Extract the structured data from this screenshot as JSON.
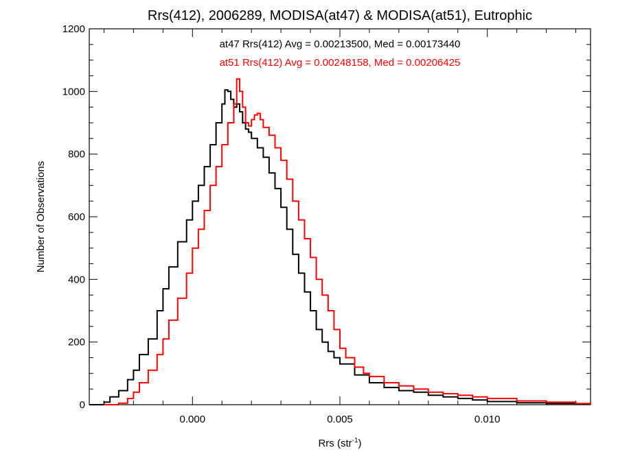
{
  "chart_data": {
    "type": "line",
    "title": "Rrs(412), 2006289, MODISA(at47) & MODISA(at51), Eutrophic",
    "xlabel": "Rrs (str",
    "xlabel_sup": "-1",
    "xlabel_close": ")",
    "ylabel": "Number of Observations",
    "xlim": [
      -0.0035,
      0.0135
    ],
    "ylim": [
      0,
      1200
    ],
    "x_ticks": [
      0.0,
      0.005,
      0.01
    ],
    "x_tick_labels": [
      "0.000",
      "0.005",
      "0.010"
    ],
    "y_ticks": [
      0,
      200,
      400,
      600,
      800,
      1000,
      1200
    ],
    "y_tick_labels": [
      "0",
      "200",
      "400",
      "600",
      "800",
      "1000",
      "1200"
    ],
    "grid": false,
    "annotations": [
      {
        "text": "at47 Rrs(412) Avg = 0.00213500, Med = 0.00173440",
        "color": "#000000"
      },
      {
        "text": "at51 Rrs(412) Avg = 0.00248158, Med = 0.00206425",
        "color": "#ff0000"
      }
    ],
    "series": [
      {
        "color": "#000000",
        "style": "step",
        "points": [
          [
            -0.0035,
            0
          ],
          [
            -0.003,
            8
          ],
          [
            -0.0028,
            25
          ],
          [
            -0.0025,
            45
          ],
          [
            -0.0022,
            80
          ],
          [
            -0.002,
            110
          ],
          [
            -0.0018,
            160
          ],
          [
            -0.0015,
            210
          ],
          [
            -0.0012,
            300
          ],
          [
            -0.001,
            370
          ],
          [
            -0.0008,
            440
          ],
          [
            -0.0005,
            520
          ],
          [
            -0.0002,
            590
          ],
          [
            0.0,
            650
          ],
          [
            0.0002,
            700
          ],
          [
            0.0004,
            760
          ],
          [
            0.0006,
            830
          ],
          [
            0.0008,
            900
          ],
          [
            0.001,
            960
          ],
          [
            0.0011,
            1005
          ],
          [
            0.0012,
            1000
          ],
          [
            0.0013,
            975
          ],
          [
            0.0014,
            950
          ],
          [
            0.0015,
            960
          ],
          [
            0.0016,
            935
          ],
          [
            0.0017,
            900
          ],
          [
            0.0018,
            880
          ],
          [
            0.0019,
            870
          ],
          [
            0.002,
            850
          ],
          [
            0.0022,
            820
          ],
          [
            0.0024,
            790
          ],
          [
            0.0026,
            740
          ],
          [
            0.0028,
            690
          ],
          [
            0.003,
            630
          ],
          [
            0.0032,
            560
          ],
          [
            0.0034,
            480
          ],
          [
            0.0036,
            420
          ],
          [
            0.0038,
            360
          ],
          [
            0.004,
            300
          ],
          [
            0.0042,
            240
          ],
          [
            0.0044,
            200
          ],
          [
            0.0046,
            170
          ],
          [
            0.0048,
            150
          ],
          [
            0.005,
            130
          ],
          [
            0.0055,
            95
          ],
          [
            0.006,
            70
          ],
          [
            0.0065,
            55
          ],
          [
            0.007,
            45
          ],
          [
            0.0075,
            40
          ],
          [
            0.008,
            30
          ],
          [
            0.0085,
            25
          ],
          [
            0.009,
            20
          ],
          [
            0.0095,
            15
          ],
          [
            0.01,
            10
          ],
          [
            0.011,
            6
          ],
          [
            0.012,
            4
          ],
          [
            0.013,
            2
          ],
          [
            0.0135,
            0
          ]
        ]
      },
      {
        "color": "#ff0000",
        "style": "step",
        "points": [
          [
            -0.003,
            0
          ],
          [
            -0.0025,
            5
          ],
          [
            -0.0022,
            20
          ],
          [
            -0.002,
            40
          ],
          [
            -0.0018,
            70
          ],
          [
            -0.0015,
            110
          ],
          [
            -0.0012,
            160
          ],
          [
            -0.001,
            210
          ],
          [
            -0.0008,
            270
          ],
          [
            -0.0005,
            340
          ],
          [
            -0.0002,
            420
          ],
          [
            0.0,
            500
          ],
          [
            0.0002,
            560
          ],
          [
            0.0004,
            620
          ],
          [
            0.0006,
            700
          ],
          [
            0.0008,
            760
          ],
          [
            0.001,
            830
          ],
          [
            0.0012,
            900
          ],
          [
            0.0014,
            960
          ],
          [
            0.0015,
            1040
          ],
          [
            0.0016,
            1000
          ],
          [
            0.0017,
            950
          ],
          [
            0.0018,
            900
          ],
          [
            0.0019,
            890
          ],
          [
            0.002,
            910
          ],
          [
            0.0021,
            925
          ],
          [
            0.0022,
            930
          ],
          [
            0.0023,
            910
          ],
          [
            0.0024,
            885
          ],
          [
            0.0026,
            860
          ],
          [
            0.0028,
            820
          ],
          [
            0.003,
            780
          ],
          [
            0.0032,
            720
          ],
          [
            0.0034,
            650
          ],
          [
            0.0036,
            590
          ],
          [
            0.0038,
            530
          ],
          [
            0.004,
            470
          ],
          [
            0.0042,
            400
          ],
          [
            0.0044,
            350
          ],
          [
            0.0046,
            300
          ],
          [
            0.0048,
            240
          ],
          [
            0.005,
            180
          ],
          [
            0.0052,
            150
          ],
          [
            0.0055,
            120
          ],
          [
            0.0058,
            100
          ],
          [
            0.006,
            90
          ],
          [
            0.0065,
            70
          ],
          [
            0.007,
            60
          ],
          [
            0.0075,
            50
          ],
          [
            0.008,
            40
          ],
          [
            0.0085,
            35
          ],
          [
            0.009,
            30
          ],
          [
            0.0095,
            25
          ],
          [
            0.01,
            20
          ],
          [
            0.011,
            12
          ],
          [
            0.012,
            8
          ],
          [
            0.013,
            4
          ],
          [
            0.0135,
            0
          ]
        ]
      }
    ]
  }
}
